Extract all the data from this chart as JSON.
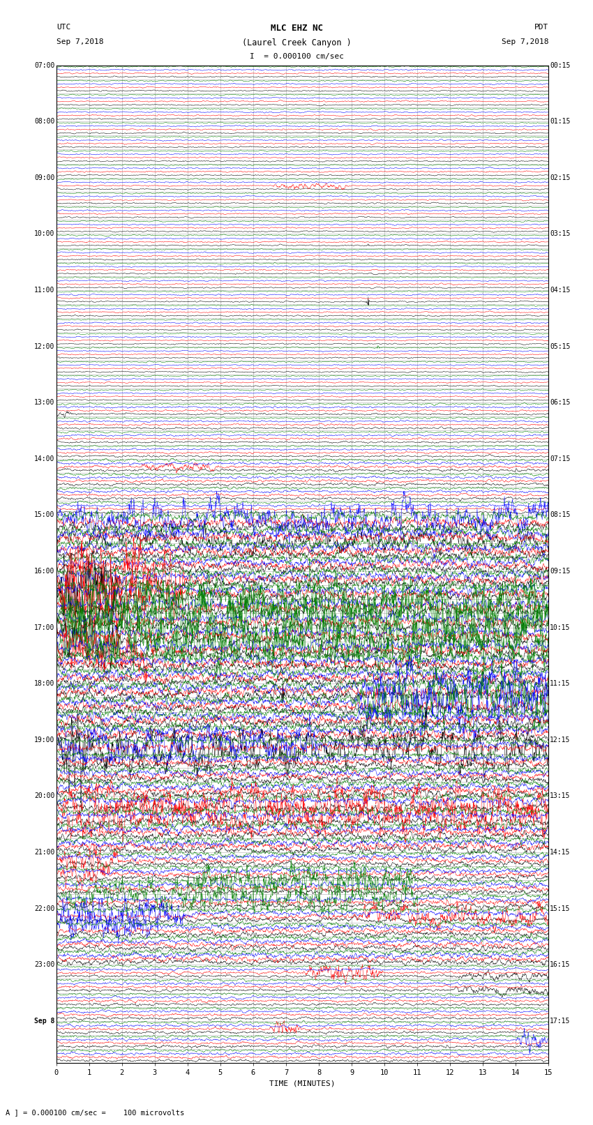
{
  "title_line1": "MLC EHZ NC",
  "title_line2": "(Laurel Creek Canyon )",
  "title_line3": "I  = 0.000100 cm/sec",
  "label_left_top": "UTC",
  "label_left_date": "Sep 7,2018",
  "label_right_top": "PDT",
  "label_right_date": "Sep 7,2018",
  "xlabel": "TIME (MINUTES)",
  "footnote": "A ] = 0.000100 cm/sec =    100 microvolts",
  "n_rows": 71,
  "colors": [
    "black",
    "red",
    "blue",
    "green"
  ],
  "background_color": "white",
  "grid_color": "#777777",
  "fig_width": 8.5,
  "fig_height": 16.13,
  "dpi": 100
}
